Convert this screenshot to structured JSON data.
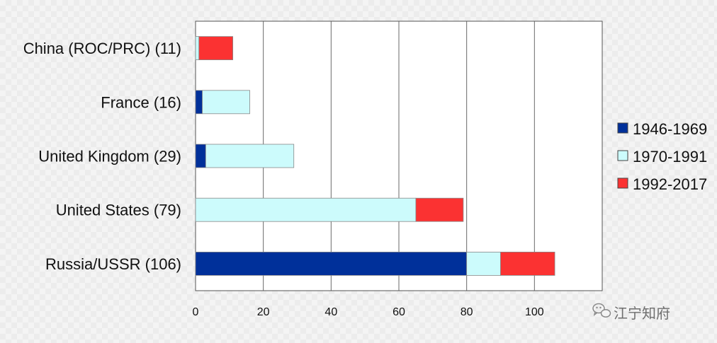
{
  "chart_data": {
    "type": "bar",
    "orientation": "horizontal",
    "stacked": true,
    "categories": [
      "China (ROC/PRC) (11)",
      "France (16)",
      "United Kingdom (29)",
      "United States (79)",
      "Russia/USSR (106)"
    ],
    "series": [
      {
        "name": "1946-1969",
        "color": "#00309a",
        "values": [
          0,
          2,
          3,
          0,
          80
        ]
      },
      {
        "name": "1970-1991",
        "color": "#ccfbfc",
        "values": [
          1,
          14,
          26,
          65,
          10
        ]
      },
      {
        "name": "1992-2017",
        "color": "#fb3232",
        "values": [
          10,
          0,
          0,
          14,
          16
        ]
      }
    ],
    "xlim": [
      0,
      120
    ],
    "xticks": [
      0,
      20,
      40,
      60,
      80,
      100
    ],
    "grid": true,
    "legend_position": "right"
  },
  "watermark": {
    "text": "江宁知府",
    "icon": "wechat-icon"
  }
}
